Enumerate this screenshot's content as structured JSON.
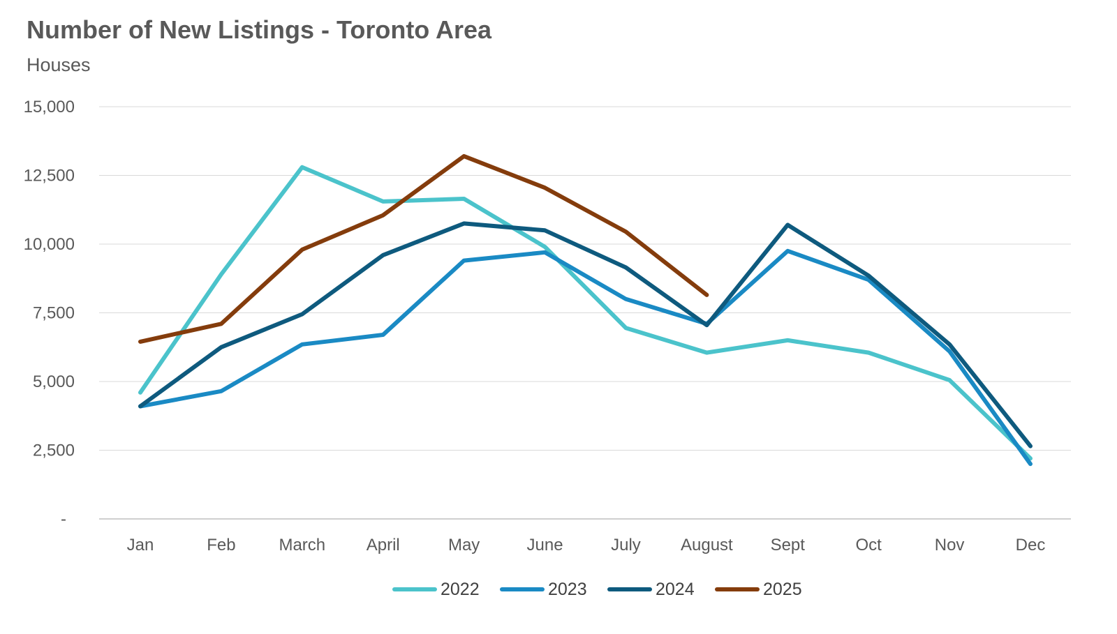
{
  "chart_data": {
    "type": "line",
    "title": "Number of New Listings - Toronto Area",
    "subtitle": "Houses",
    "xlabel": "",
    "ylabel": "",
    "categories": [
      "Jan",
      "Feb",
      "March",
      "April",
      "May",
      "June",
      "July",
      "August",
      "Sept",
      "Oct",
      "Nov",
      "Dec"
    ],
    "ylim": [
      0,
      15000
    ],
    "yticks": [
      0,
      2500,
      5000,
      7500,
      10000,
      12500,
      15000
    ],
    "ytick_labels": [
      "-",
      "2,500",
      "5,000",
      "7,500",
      "10,000",
      "12,500",
      "15,000"
    ],
    "grid": true,
    "legend_position": "bottom",
    "series": [
      {
        "name": "2022",
        "color": "#4BC3CB",
        "values": [
          4600,
          8900,
          12800,
          11550,
          11650,
          9900,
          6950,
          6050,
          6500,
          6050,
          5050,
          2200
        ]
      },
      {
        "name": "2023",
        "color": "#1A8AC4",
        "values": [
          4100,
          4650,
          6350,
          6700,
          9400,
          9700,
          8000,
          7100,
          9750,
          8700,
          6100,
          2000
        ]
      },
      {
        "name": "2024",
        "color": "#0E5A7E",
        "values": [
          4100,
          6250,
          7450,
          9600,
          10750,
          10500,
          9150,
          7050,
          10700,
          8850,
          6350,
          2650
        ]
      },
      {
        "name": "2025",
        "color": "#843C0C",
        "values": [
          6450,
          7100,
          9800,
          11050,
          13200,
          12050,
          10450,
          8150,
          null,
          null,
          null,
          null
        ]
      }
    ]
  }
}
